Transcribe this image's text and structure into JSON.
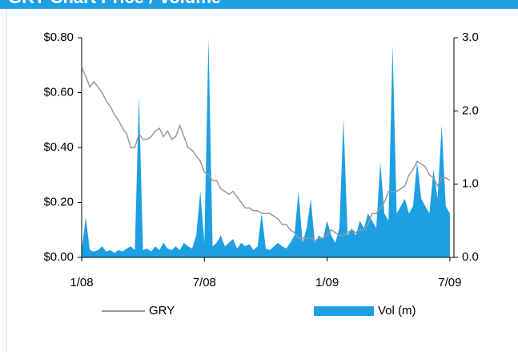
{
  "chart_data": {
    "type": "price-volume",
    "title": "GRY Chart Price / Volume",
    "x": [
      0,
      0.2,
      0.4,
      0.6,
      0.8,
      1.0,
      1.2,
      1.4,
      1.6,
      1.8,
      2.0,
      2.2,
      2.4,
      2.6,
      2.8,
      3.0,
      3.2,
      3.4,
      3.6,
      3.8,
      4.0,
      4.2,
      4.4,
      4.6,
      4.8,
      5.0,
      5.2,
      5.4,
      5.6,
      5.8,
      6.0,
      6.2,
      6.4,
      6.6,
      6.8,
      7.0,
      7.2,
      7.4,
      7.6,
      7.8,
      8.0,
      8.2,
      8.4,
      8.6,
      8.8,
      9.0,
      9.2,
      9.4,
      9.6,
      9.8,
      10.0,
      10.2,
      10.4,
      10.6,
      10.8,
      11.0,
      11.2,
      11.4,
      11.6,
      11.8,
      12.0,
      12.2,
      12.4,
      12.6,
      12.8,
      13.0,
      13.2,
      13.4,
      13.6,
      13.8,
      14.0,
      14.2,
      14.4,
      14.6,
      14.8,
      15.0,
      15.2,
      15.4,
      15.6,
      15.8,
      16.0,
      16.2,
      16.4,
      16.6,
      16.8,
      17.0,
      17.2,
      17.4,
      17.6,
      17.8,
      18.0
    ],
    "series": [
      {
        "name": "GRY",
        "color": "#999999",
        "values": [
          0.69,
          0.66,
          0.62,
          0.64,
          0.62,
          0.6,
          0.57,
          0.55,
          0.52,
          0.5,
          0.47,
          0.45,
          0.4,
          0.4,
          0.45,
          0.43,
          0.43,
          0.44,
          0.46,
          0.47,
          0.44,
          0.46,
          0.43,
          0.44,
          0.48,
          0.44,
          0.4,
          0.39,
          0.37,
          0.35,
          0.31,
          0.3,
          0.28,
          0.28,
          0.25,
          0.24,
          0.23,
          0.24,
          0.22,
          0.2,
          0.18,
          0.18,
          0.17,
          0.17,
          0.16,
          0.16,
          0.16,
          0.15,
          0.14,
          0.12,
          0.12,
          0.1,
          0.09,
          0.07,
          0.07,
          0.07,
          0.07,
          0.06,
          0.07,
          0.07,
          0.08,
          0.1,
          0.09,
          0.08,
          0.08,
          0.09,
          0.1,
          0.09,
          0.1,
          0.1,
          0.12,
          0.16,
          0.16,
          0.18,
          0.2,
          0.24,
          0.24,
          0.24,
          0.25,
          0.26,
          0.3,
          0.32,
          0.35,
          0.34,
          0.33,
          0.3,
          0.29,
          0.26,
          0.29,
          0.29,
          0.28
        ]
      },
      {
        "name": "Vol (m)",
        "color": "#1ca0e3",
        "axis": "y2",
        "values": [
          0.1,
          0.55,
          0.1,
          0.08,
          0.1,
          0.15,
          0.08,
          0.1,
          0.06,
          0.1,
          0.08,
          0.12,
          0.15,
          0.1,
          2.2,
          0.1,
          0.12,
          0.08,
          0.15,
          0.1,
          0.2,
          0.12,
          0.1,
          0.15,
          0.1,
          0.2,
          0.15,
          0.12,
          0.3,
          0.9,
          0.2,
          3.0,
          0.15,
          0.2,
          0.3,
          0.15,
          0.2,
          0.25,
          0.12,
          0.2,
          0.15,
          0.18,
          0.1,
          0.15,
          0.6,
          0.12,
          0.1,
          0.15,
          0.2,
          0.15,
          0.12,
          0.2,
          0.3,
          0.9,
          0.2,
          0.4,
          0.8,
          0.2,
          0.3,
          0.25,
          0.5,
          0.3,
          0.2,
          0.4,
          1.9,
          0.3,
          0.4,
          0.3,
          0.5,
          0.4,
          0.6,
          0.5,
          0.4,
          1.3,
          0.6,
          0.5,
          2.9,
          0.6,
          0.7,
          0.8,
          0.6,
          0.7,
          1.3,
          0.8,
          0.7,
          0.6,
          1.2,
          0.8,
          1.8,
          0.7,
          0.6
        ]
      }
    ],
    "xlim": [
      0,
      18.2
    ],
    "xticks": [
      {
        "value": 0,
        "label": "1/08"
      },
      {
        "value": 6,
        "label": "7/08"
      },
      {
        "value": 12,
        "label": "1/09"
      },
      {
        "value": 18,
        "label": "7/09"
      }
    ],
    "ylim": [
      0,
      0.8
    ],
    "yticks": [
      {
        "value": 0,
        "label": "$0.00"
      },
      {
        "value": 0.2,
        "label": "$0.20"
      },
      {
        "value": 0.4,
        "label": "$0.40"
      },
      {
        "value": 0.6,
        "label": "$0.60"
      },
      {
        "value": 0.8,
        "label": "$0.80"
      }
    ],
    "y2lim": [
      0,
      3
    ],
    "y2ticks": [
      {
        "value": 0,
        "label": "0.0"
      },
      {
        "value": 1,
        "label": "1.0"
      },
      {
        "value": 2,
        "label": "2.0"
      },
      {
        "value": 3,
        "label": "3.0"
      }
    ]
  }
}
